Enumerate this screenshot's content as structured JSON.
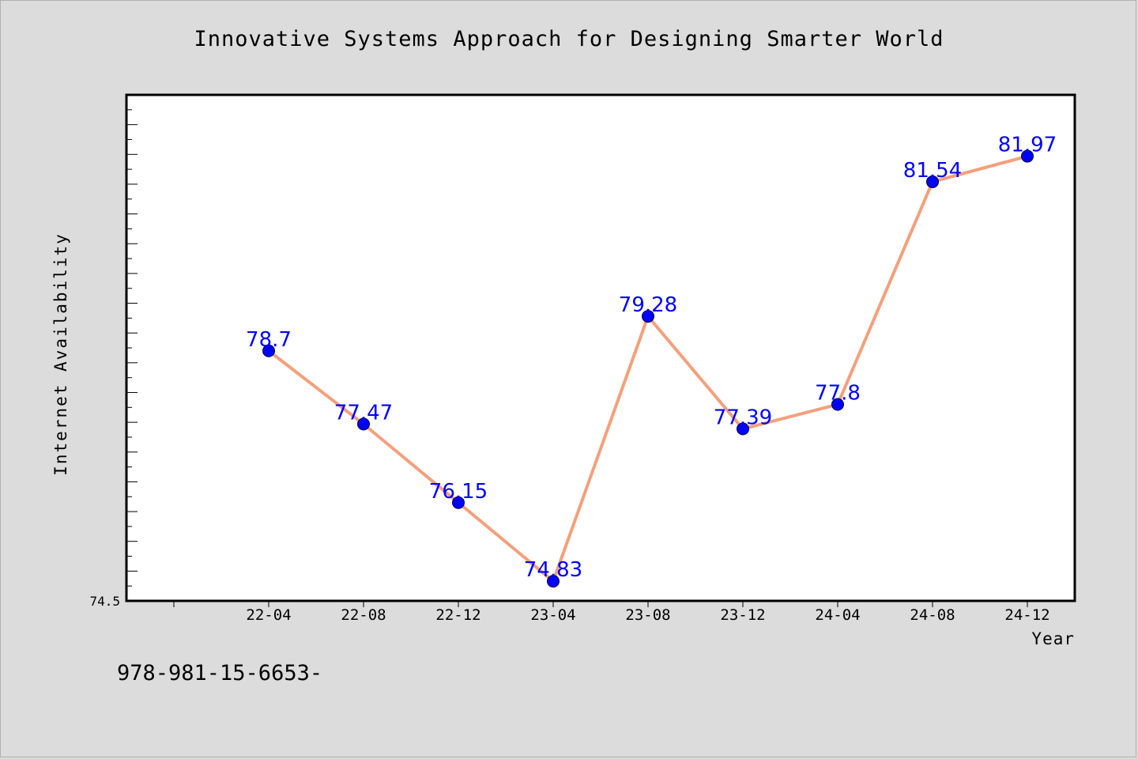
{
  "title": "Innovative Systems Approach for Designing Smarter World",
  "footer": "978-981-15-6653-",
  "chart_data": {
    "type": "line",
    "title": "Innovative Systems Approach for Designing Smarter World",
    "xlabel": "Year",
    "ylabel": "Internet Availability",
    "categories": [
      "22-04",
      "22-08",
      "22-12",
      "23-04",
      "23-08",
      "23-12",
      "24-04",
      "24-08",
      "24-12"
    ],
    "series": [
      {
        "values": [
          78.7,
          77.47,
          76.15,
          74.83,
          79.28,
          77.39,
          77.8,
          81.54,
          81.97
        ],
        "labels": [
          "78.7",
          "77.47",
          "76.15",
          "74.83",
          "79.28",
          "77.39",
          "77.8",
          "81.54",
          "81.97"
        ],
        "line_color": "#f4a07c",
        "marker_color": "#0000ff"
      }
    ],
    "ylim": [
      74.5,
      83.0
    ],
    "yticks": [
      "74.5"
    ],
    "grid": false,
    "legend": "none",
    "label_color": "#0000ff"
  }
}
